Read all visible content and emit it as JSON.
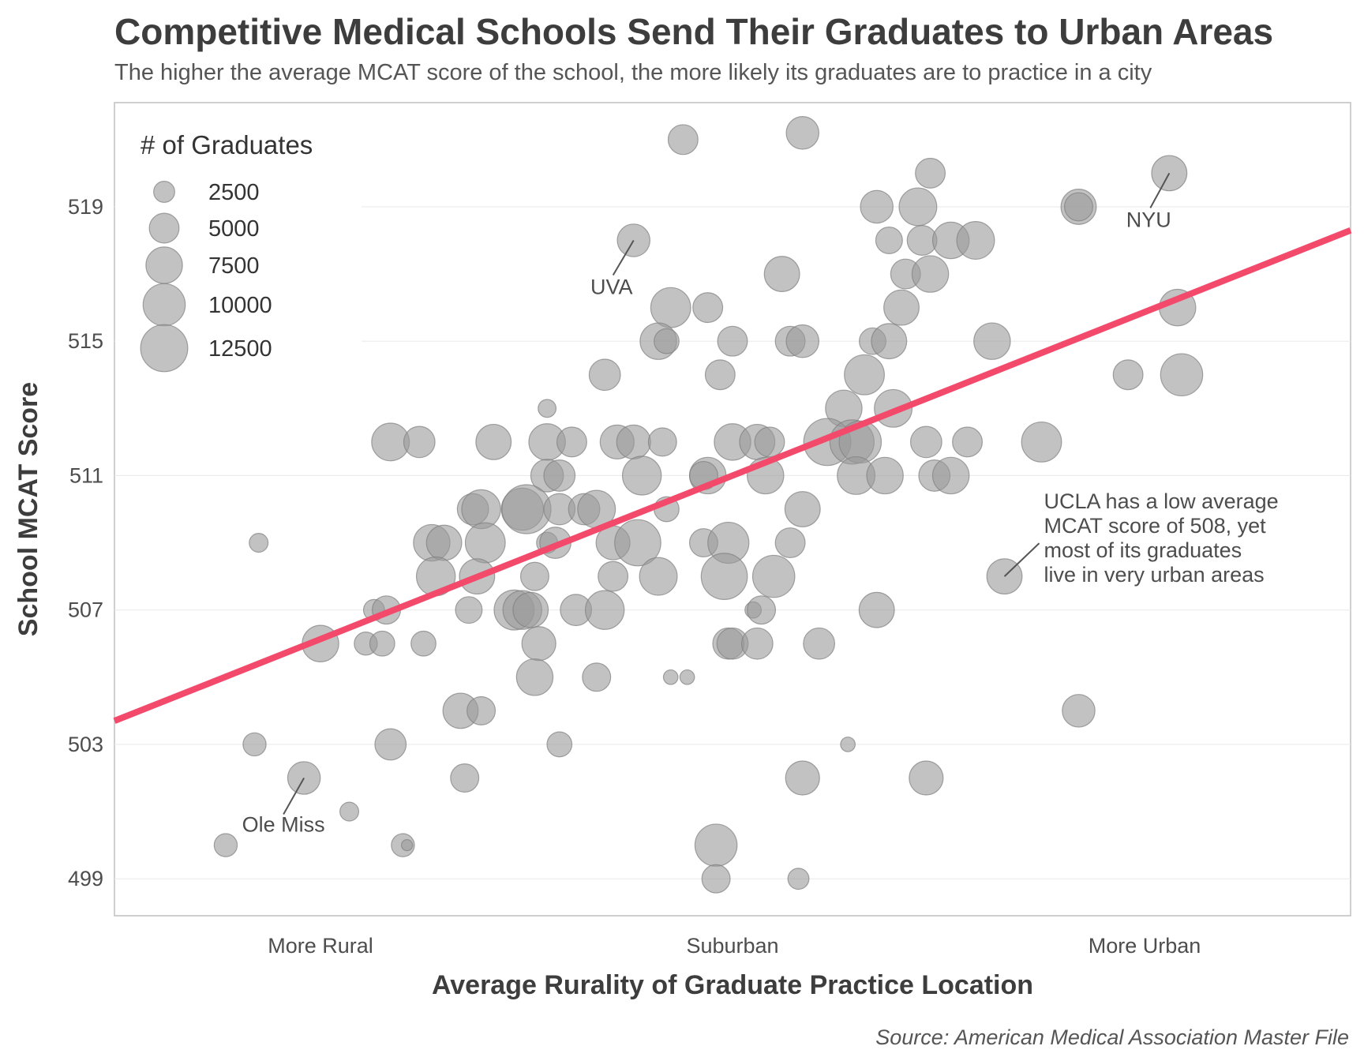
{
  "chart_data": {
    "type": "scatter",
    "title": "Competitive Medical Schools Send Their Graduates to Urban Areas",
    "subtitle": "The higher the average MCAT score of the school, the more likely its graduates are to practice in a city",
    "xlabel": "Average Rurality of Graduate Practice Location",
    "ylabel": "School MCAT Score",
    "caption": "Source: American Medical Association Master File",
    "x_categories": [
      "More Rural",
      "Suburban",
      "More Urban"
    ],
    "x_category_positions": [
      1,
      2,
      3
    ],
    "xlim": [
      0.5,
      3.5
    ],
    "ylim": [
      497.9,
      522.1
    ],
    "y_ticks": [
      "499",
      "503",
      "507",
      "511",
      "515",
      "519"
    ],
    "grid": true,
    "trend_line": {
      "color": "#f34a6c",
      "x": [
        0.5,
        3.5
      ],
      "y": [
        503.7,
        518.3
      ]
    },
    "legend": {
      "title": "# of Graduates",
      "placement": "top-left",
      "sizes": [
        2500,
        5000,
        7500,
        10000,
        12500
      ],
      "labels": [
        "2500",
        "5000",
        "7500",
        "10000",
        "12500"
      ]
    },
    "annotations": [
      {
        "label": "UVA",
        "point": [
          1.76,
          518
        ]
      },
      {
        "label": "NYU",
        "point": [
          3.06,
          520
        ]
      },
      {
        "label": "Ole Miss",
        "point": [
          0.96,
          502
        ]
      },
      {
        "label": "UCLA has a low average\nMCAT score of 508, yet\nmost of its graduates\nlive in very urban areas",
        "point": [
          2.66,
          508
        ]
      }
    ],
    "points": [
      {
        "x": 1.88,
        "y": 521,
        "n": 5000
      },
      {
        "x": 2.17,
        "y": 521.2,
        "n": 6000
      },
      {
        "x": 2.48,
        "y": 520,
        "n": 5000
      },
      {
        "x": 3.06,
        "y": 520,
        "n": 7000
      },
      {
        "x": 2.35,
        "y": 519,
        "n": 6000
      },
      {
        "x": 2.45,
        "y": 519,
        "n": 8000
      },
      {
        "x": 2.84,
        "y": 519,
        "n": 7000
      },
      {
        "x": 2.84,
        "y": 519,
        "n": 4500
      },
      {
        "x": 1.76,
        "y": 518,
        "n": 6000
      },
      {
        "x": 2.38,
        "y": 518,
        "n": 4000
      },
      {
        "x": 2.46,
        "y": 518,
        "n": 5000
      },
      {
        "x": 2.53,
        "y": 518,
        "n": 7500
      },
      {
        "x": 2.59,
        "y": 518,
        "n": 8000
      },
      {
        "x": 2.12,
        "y": 517,
        "n": 7000
      },
      {
        "x": 2.42,
        "y": 517,
        "n": 5000
      },
      {
        "x": 2.48,
        "y": 517,
        "n": 7500
      },
      {
        "x": 1.85,
        "y": 516,
        "n": 9000
      },
      {
        "x": 1.94,
        "y": 516,
        "n": 5000
      },
      {
        "x": 2.41,
        "y": 516,
        "n": 7000
      },
      {
        "x": 3.08,
        "y": 516,
        "n": 7500
      },
      {
        "x": 1.82,
        "y": 515,
        "n": 7500
      },
      {
        "x": 1.84,
        "y": 515,
        "n": 3500
      },
      {
        "x": 2.0,
        "y": 515,
        "n": 5000
      },
      {
        "x": 2.14,
        "y": 515,
        "n": 5000
      },
      {
        "x": 2.17,
        "y": 515,
        "n": 6000
      },
      {
        "x": 2.34,
        "y": 515,
        "n": 4000
      },
      {
        "x": 2.38,
        "y": 515,
        "n": 7000
      },
      {
        "x": 2.63,
        "y": 515,
        "n": 7500
      },
      {
        "x": 1.69,
        "y": 514,
        "n": 5500
      },
      {
        "x": 1.97,
        "y": 514,
        "n": 5000
      },
      {
        "x": 2.32,
        "y": 514,
        "n": 9000
      },
      {
        "x": 2.96,
        "y": 514,
        "n": 5000
      },
      {
        "x": 3.09,
        "y": 514,
        "n": 10000
      },
      {
        "x": 1.55,
        "y": 513,
        "n": 1800
      },
      {
        "x": 2.27,
        "y": 513,
        "n": 7500
      },
      {
        "x": 2.39,
        "y": 513,
        "n": 8000
      },
      {
        "x": 1.17,
        "y": 512,
        "n": 8000
      },
      {
        "x": 1.24,
        "y": 512,
        "n": 5500
      },
      {
        "x": 1.42,
        "y": 512,
        "n": 7000
      },
      {
        "x": 1.55,
        "y": 512,
        "n": 7500
      },
      {
        "x": 1.61,
        "y": 512,
        "n": 5000
      },
      {
        "x": 1.72,
        "y": 512,
        "n": 6500
      },
      {
        "x": 1.76,
        "y": 512,
        "n": 6500
      },
      {
        "x": 1.83,
        "y": 512,
        "n": 4500
      },
      {
        "x": 2.0,
        "y": 512,
        "n": 7500
      },
      {
        "x": 2.06,
        "y": 512,
        "n": 7000
      },
      {
        "x": 2.09,
        "y": 512,
        "n": 5000
      },
      {
        "x": 2.23,
        "y": 512,
        "n": 12500
      },
      {
        "x": 2.29,
        "y": 512,
        "n": 11000
      },
      {
        "x": 2.31,
        "y": 512,
        "n": 10000
      },
      {
        "x": 2.47,
        "y": 512,
        "n": 5500
      },
      {
        "x": 2.57,
        "y": 512,
        "n": 5000
      },
      {
        "x": 2.75,
        "y": 512,
        "n": 9000
      },
      {
        "x": 1.55,
        "y": 511,
        "n": 6000
      },
      {
        "x": 1.58,
        "y": 511,
        "n": 5500
      },
      {
        "x": 1.78,
        "y": 511,
        "n": 8500
      },
      {
        "x": 1.94,
        "y": 511,
        "n": 7500
      },
      {
        "x": 1.93,
        "y": 511,
        "n": 4500
      },
      {
        "x": 2.08,
        "y": 511,
        "n": 7500
      },
      {
        "x": 2.3,
        "y": 511,
        "n": 8000
      },
      {
        "x": 2.37,
        "y": 511,
        "n": 7500
      },
      {
        "x": 2.49,
        "y": 511,
        "n": 5500
      },
      {
        "x": 2.53,
        "y": 511,
        "n": 7500
      },
      {
        "x": 1.37,
        "y": 510,
        "n": 5500
      },
      {
        "x": 1.39,
        "y": 510,
        "n": 8500
      },
      {
        "x": 1.49,
        "y": 510,
        "n": 10000
      },
      {
        "x": 1.5,
        "y": 510,
        "n": 13500
      },
      {
        "x": 1.58,
        "y": 510,
        "n": 5500
      },
      {
        "x": 1.64,
        "y": 510,
        "n": 5500
      },
      {
        "x": 1.67,
        "y": 510,
        "n": 8000
      },
      {
        "x": 1.84,
        "y": 510,
        "n": 3500
      },
      {
        "x": 2.17,
        "y": 510,
        "n": 7000
      },
      {
        "x": 0.85,
        "y": 509,
        "n": 2000
      },
      {
        "x": 1.27,
        "y": 509,
        "n": 7500
      },
      {
        "x": 1.3,
        "y": 509,
        "n": 7000
      },
      {
        "x": 1.4,
        "y": 509,
        "n": 9000
      },
      {
        "x": 1.55,
        "y": 509,
        "n": 2500
      },
      {
        "x": 1.57,
        "y": 509,
        "n": 5500
      },
      {
        "x": 1.71,
        "y": 509,
        "n": 6500
      },
      {
        "x": 1.77,
        "y": 509,
        "n": 12000
      },
      {
        "x": 1.93,
        "y": 509,
        "n": 4500
      },
      {
        "x": 1.99,
        "y": 509,
        "n": 9500
      },
      {
        "x": 2.14,
        "y": 509,
        "n": 5000
      },
      {
        "x": 1.28,
        "y": 508,
        "n": 8500
      },
      {
        "x": 1.38,
        "y": 508,
        "n": 7000
      },
      {
        "x": 1.52,
        "y": 508,
        "n": 4500
      },
      {
        "x": 1.71,
        "y": 508,
        "n": 5000
      },
      {
        "x": 1.82,
        "y": 508,
        "n": 8000
      },
      {
        "x": 1.98,
        "y": 508,
        "n": 12000
      },
      {
        "x": 2.1,
        "y": 508,
        "n": 10000
      },
      {
        "x": 2.66,
        "y": 508,
        "n": 7000
      },
      {
        "x": 1.13,
        "y": 507,
        "n": 2500
      },
      {
        "x": 1.16,
        "y": 507,
        "n": 4500
      },
      {
        "x": 1.36,
        "y": 507,
        "n": 4000
      },
      {
        "x": 1.47,
        "y": 507,
        "n": 9000
      },
      {
        "x": 1.49,
        "y": 507,
        "n": 8500
      },
      {
        "x": 1.51,
        "y": 507,
        "n": 7000
      },
      {
        "x": 1.62,
        "y": 507,
        "n": 5500
      },
      {
        "x": 1.69,
        "y": 507,
        "n": 8500
      },
      {
        "x": 2.05,
        "y": 507,
        "n": 1500
      },
      {
        "x": 2.07,
        "y": 507,
        "n": 4500
      },
      {
        "x": 2.35,
        "y": 507,
        "n": 7000
      },
      {
        "x": 1.0,
        "y": 506,
        "n": 7500
      },
      {
        "x": 1.11,
        "y": 506,
        "n": 3000
      },
      {
        "x": 1.15,
        "y": 506,
        "n": 3500
      },
      {
        "x": 1.25,
        "y": 506,
        "n": 3500
      },
      {
        "x": 1.53,
        "y": 506,
        "n": 6500
      },
      {
        "x": 1.99,
        "y": 506,
        "n": 5500
      },
      {
        "x": 2.0,
        "y": 506,
        "n": 5500
      },
      {
        "x": 2.06,
        "y": 506,
        "n": 5500
      },
      {
        "x": 2.21,
        "y": 506,
        "n": 5500
      },
      {
        "x": 1.52,
        "y": 505,
        "n": 7500
      },
      {
        "x": 1.67,
        "y": 505,
        "n": 4500
      },
      {
        "x": 1.85,
        "y": 505,
        "n": 1200
      },
      {
        "x": 1.89,
        "y": 505,
        "n": 1200
      },
      {
        "x": 1.34,
        "y": 504,
        "n": 7000
      },
      {
        "x": 1.39,
        "y": 504,
        "n": 4500
      },
      {
        "x": 2.84,
        "y": 504,
        "n": 6000
      },
      {
        "x": 0.84,
        "y": 503,
        "n": 3000
      },
      {
        "x": 1.17,
        "y": 503,
        "n": 5500
      },
      {
        "x": 1.58,
        "y": 503,
        "n": 3500
      },
      {
        "x": 2.28,
        "y": 503,
        "n": 1200
      },
      {
        "x": 0.96,
        "y": 502,
        "n": 6000
      },
      {
        "x": 1.35,
        "y": 502,
        "n": 4500
      },
      {
        "x": 2.17,
        "y": 502,
        "n": 6500
      },
      {
        "x": 2.47,
        "y": 502,
        "n": 6500
      },
      {
        "x": 1.07,
        "y": 501,
        "n": 2000
      },
      {
        "x": 0.77,
        "y": 500,
        "n": 3000
      },
      {
        "x": 1.2,
        "y": 500,
        "n": 3000
      },
      {
        "x": 1.21,
        "y": 500,
        "n": 700
      },
      {
        "x": 1.96,
        "y": 500,
        "n": 10000
      },
      {
        "x": 1.96,
        "y": 499,
        "n": 4500
      },
      {
        "x": 2.16,
        "y": 499,
        "n": 2500
      }
    ]
  }
}
